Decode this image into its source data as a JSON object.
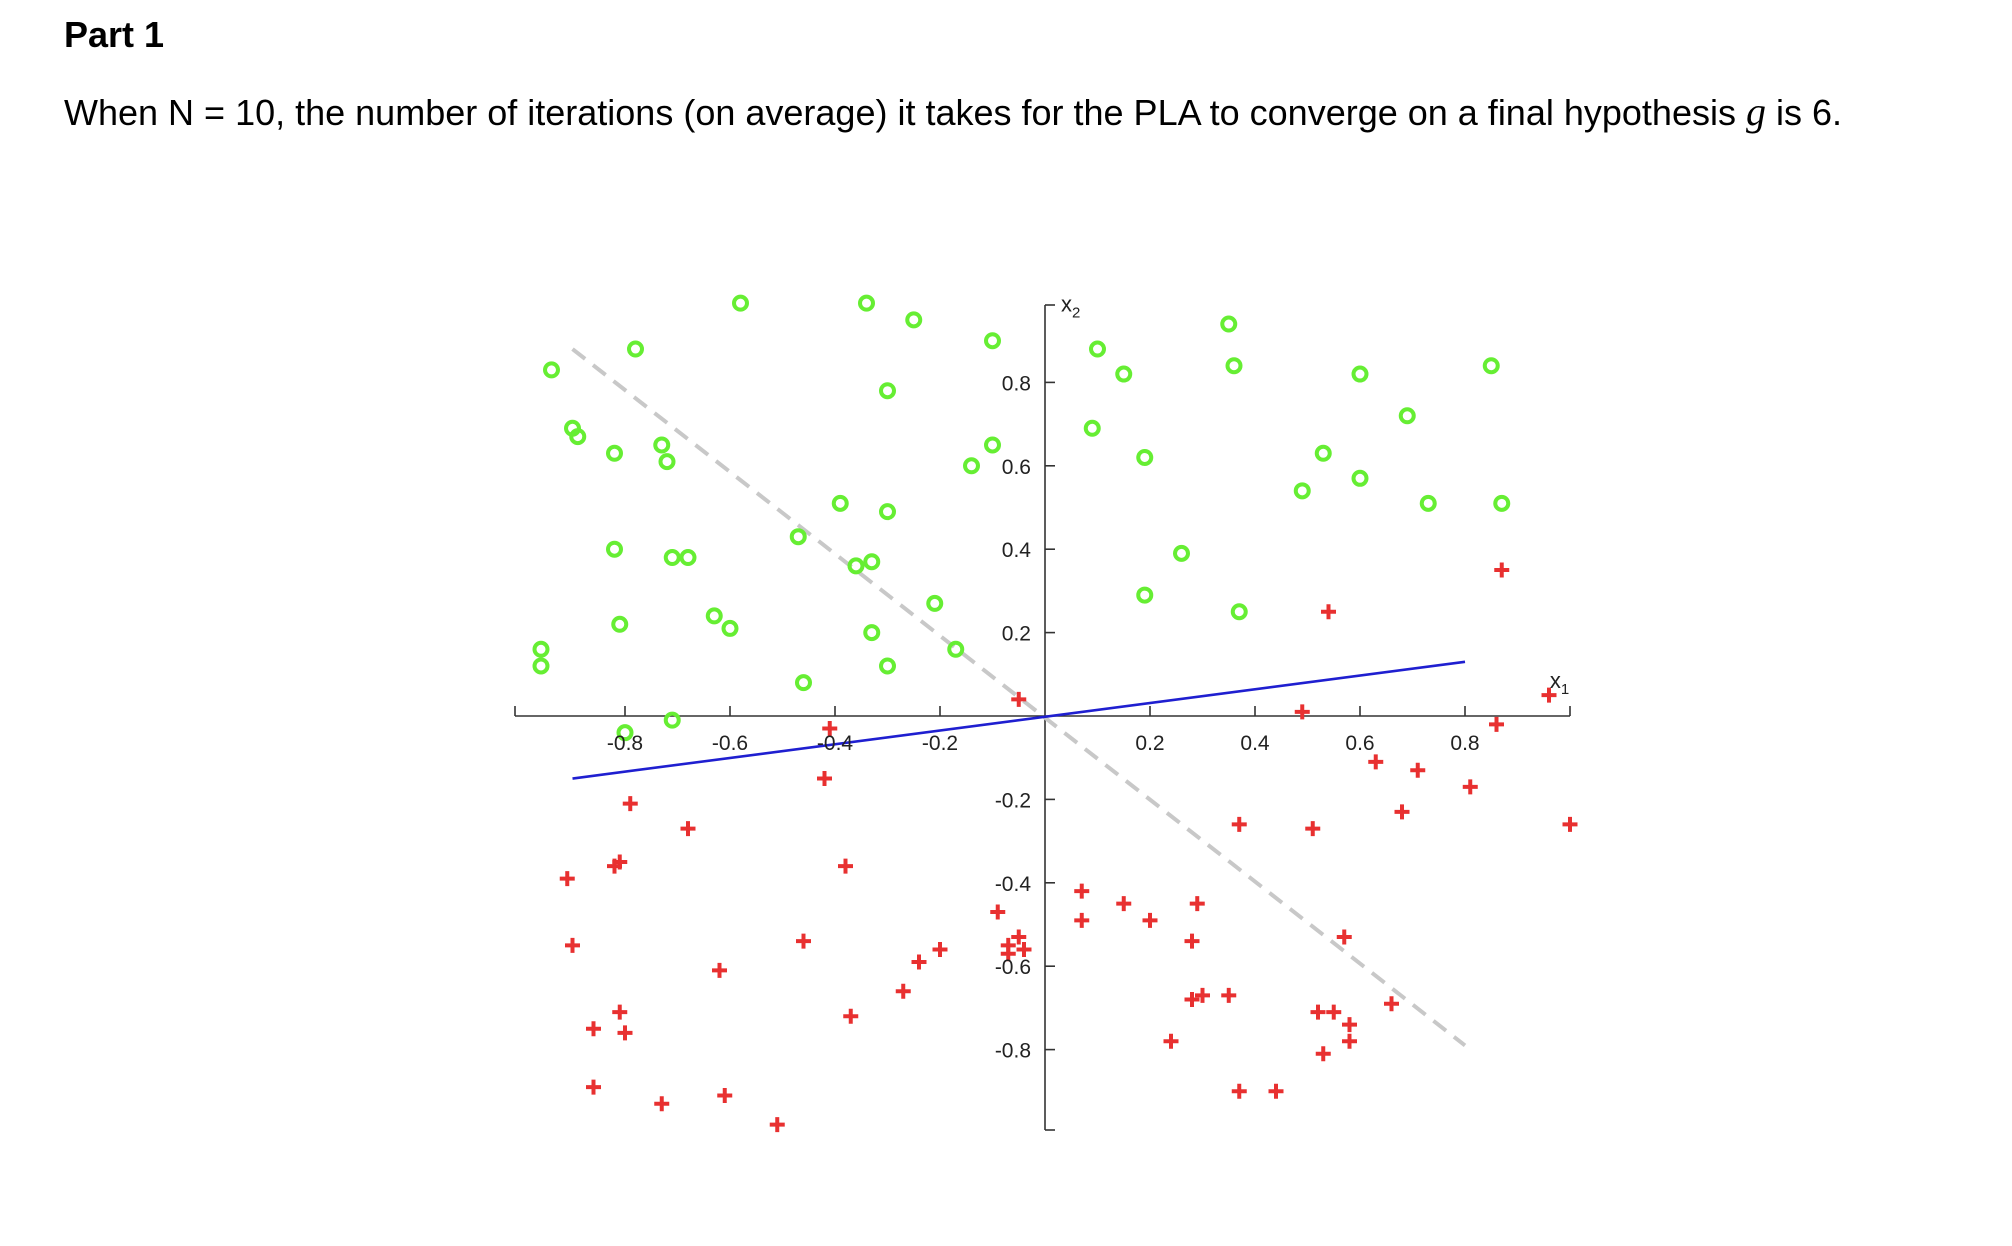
{
  "heading": "Part 1",
  "paragraph": {
    "before": "When N = 10, the number of iterations (on average) it takes for the PLA to converge on a final hypothesis ",
    "variable": "g",
    "after": " is 6."
  },
  "chart_data": {
    "type": "scatter",
    "title": "",
    "xlabel": "x",
    "xlabel_sub": "1",
    "ylabel": "x",
    "ylabel_sub": "2",
    "xlim": [
      -1,
      1
    ],
    "ylim": [
      -1,
      1
    ],
    "grid": false,
    "axes_through_origin": true,
    "xticks": [
      -0.8,
      -0.6,
      -0.4,
      -0.2,
      0.2,
      0.4,
      0.6,
      0.8
    ],
    "xtick_labels": [
      "-0.8",
      "-0.6",
      "-0.4",
      "-0.2",
      "0.2",
      "0.4",
      "0.6",
      "0.8"
    ],
    "yticks": [
      0.8,
      0.6,
      0.4,
      0.2,
      -0.2,
      -0.4,
      -0.6,
      -0.8
    ],
    "ytick_labels": [
      "0.8",
      "0.6",
      "0.4",
      "0.2",
      "-0.2",
      "-0.4",
      "-0.6",
      "-0.8"
    ],
    "lines": [
      {
        "role": "target-function",
        "style": "dashed",
        "color": "#c8c8c8",
        "x": [
          -0.9,
          0.8
        ],
        "y": [
          0.88,
          -0.79
        ]
      },
      {
        "role": "final-hypothesis-g",
        "style": "solid",
        "color": "#1f1fd0",
        "x": [
          -0.9,
          0.8
        ],
        "y": [
          -0.15,
          0.13
        ]
      }
    ],
    "series": [
      {
        "marker": "o",
        "color": "#66ee33",
        "x": [
          -0.96,
          -0.96,
          -0.94,
          -0.9,
          -0.89,
          -0.82,
          -0.82,
          -0.81,
          -0.8,
          -0.78,
          -0.73,
          -0.72,
          -0.71,
          -0.71,
          -0.68,
          -0.63,
          -0.6,
          -0.58,
          -0.46,
          -0.47,
          -0.39,
          -0.36,
          -0.34,
          -0.33,
          -0.33,
          -0.3,
          -0.3,
          -0.3,
          -0.25,
          -0.21,
          -0.17,
          -0.14,
          -0.1,
          -0.1,
          0.09,
          0.1,
          0.15,
          0.19,
          0.19,
          0.26,
          0.35,
          0.36,
          0.37,
          0.49,
          0.53,
          0.6,
          0.6,
          0.69,
          0.73,
          0.85,
          0.87
        ],
        "y": [
          0.16,
          0.12,
          0.83,
          0.69,
          0.67,
          0.63,
          0.4,
          0.22,
          -0.04,
          0.88,
          0.65,
          0.61,
          0.38,
          -0.01,
          0.38,
          0.24,
          0.21,
          0.99,
          0.08,
          0.43,
          0.51,
          0.36,
          0.99,
          0.37,
          0.2,
          0.78,
          0.49,
          0.12,
          0.95,
          0.27,
          0.16,
          0.6,
          0.9,
          0.65,
          0.69,
          0.88,
          0.82,
          0.62,
          0.29,
          0.39,
          0.94,
          0.84,
          0.25,
          0.54,
          0.63,
          0.82,
          0.57,
          0.72,
          0.51,
          0.84,
          0.51
        ]
      },
      {
        "marker": "+",
        "color": "#e83030",
        "x": [
          -0.91,
          -0.9,
          -0.86,
          -0.86,
          -0.82,
          -0.81,
          -0.81,
          -0.8,
          -0.79,
          -0.73,
          -0.68,
          -0.62,
          -0.61,
          -0.51,
          -0.46,
          -0.42,
          -0.41,
          -0.38,
          -0.37,
          -0.27,
          -0.24,
          -0.2,
          -0.09,
          -0.07,
          -0.07,
          -0.05,
          -0.05,
          -0.04,
          0.07,
          0.07,
          0.15,
          0.2,
          0.24,
          0.28,
          0.28,
          0.29,
          0.3,
          0.35,
          0.37,
          0.37,
          0.44,
          0.49,
          0.51,
          0.52,
          0.53,
          0.54,
          0.55,
          0.57,
          0.58,
          0.58,
          0.63,
          0.66,
          0.68,
          0.71,
          0.81,
          0.86,
          0.87,
          0.96,
          1.0
        ],
        "y": [
          -0.39,
          -0.55,
          -0.75,
          -0.89,
          -0.36,
          -0.35,
          -0.71,
          -0.76,
          -0.21,
          -0.93,
          -0.27,
          -0.61,
          -0.91,
          -0.98,
          -0.54,
          -0.15,
          -0.03,
          -0.36,
          -0.72,
          -0.66,
          -0.59,
          -0.56,
          -0.47,
          -0.57,
          -0.55,
          0.04,
          -0.53,
          -0.56,
          -0.42,
          -0.49,
          -0.45,
          -0.49,
          -0.78,
          -0.54,
          -0.68,
          -0.45,
          -0.67,
          -0.67,
          -0.26,
          -0.9,
          -0.9,
          0.01,
          -0.27,
          -0.71,
          -0.81,
          0.25,
          -0.71,
          -0.53,
          -0.78,
          -0.74,
          -0.11,
          -0.69,
          -0.23,
          -0.13,
          -0.17,
          -0.02,
          0.35,
          0.05,
          -0.26
        ]
      }
    ]
  }
}
